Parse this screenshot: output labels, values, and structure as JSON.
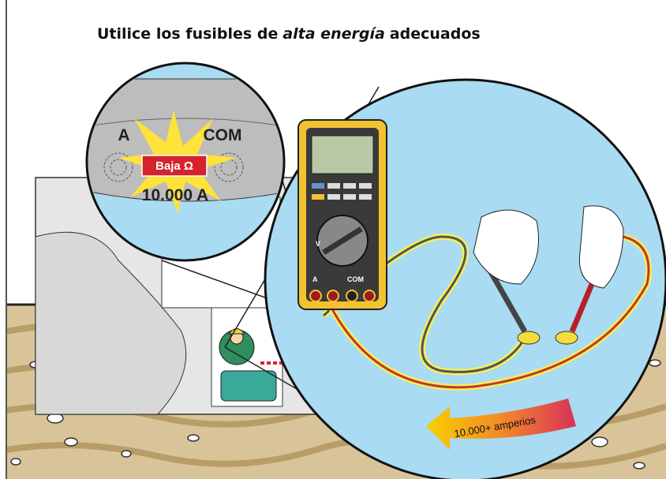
{
  "title_parts": [
    "Utilice los fusibles de",
    "alta energía",
    "adecuados"
  ],
  "detail": {
    "a_label": "A",
    "com_label": "COM",
    "warning": "Baja Ω",
    "rating": "10.000 A"
  },
  "meter": {
    "v_label": "V",
    "a_label": "A",
    "com_label": "COM"
  },
  "current_label": "10.000+ amperios"
}
